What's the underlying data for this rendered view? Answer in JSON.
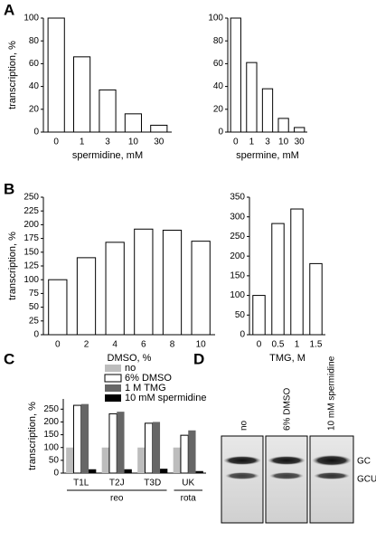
{
  "panel_labels": [
    "A",
    "B",
    "C",
    "D"
  ],
  "chart_data": [
    {
      "type": "bar",
      "ylabel": "transcription, %",
      "xlabel": "spermidine, mM",
      "categories": [
        "0",
        "1",
        "3",
        "10",
        "30"
      ],
      "values": [
        100,
        66,
        37,
        16,
        6
      ],
      "color": "#ffffff",
      "ylim": [
        0,
        100
      ],
      "yticks": [
        0,
        20,
        40,
        60,
        80,
        100
      ]
    },
    {
      "type": "bar",
      "xlabel": "spermine, mM",
      "categories": [
        "0",
        "1",
        "3",
        "10",
        "30"
      ],
      "values": [
        100,
        61,
        38,
        12,
        4
      ],
      "color": "#ffffff",
      "ylim": [
        0,
        100
      ],
      "yticks": [
        0,
        20,
        40,
        60,
        80,
        100
      ]
    },
    {
      "type": "bar",
      "ylabel": "transcription, %",
      "xlabel": "DMSO, %",
      "categories": [
        "0",
        "2",
        "4",
        "6",
        "8",
        "10"
      ],
      "values": [
        100,
        140,
        168,
        192,
        190,
        170
      ],
      "color": "#ffffff",
      "ylim": [
        0,
        250
      ],
      "yticks": [
        0,
        25,
        50,
        75,
        100,
        125,
        150,
        175,
        200,
        225,
        250
      ]
    },
    {
      "type": "bar",
      "xlabel": "TMG, M",
      "categories": [
        "0",
        "0.5",
        "1",
        "1.5"
      ],
      "values": [
        100,
        283,
        320,
        181
      ],
      "color": "#ffffff",
      "ylim": [
        0,
        350
      ],
      "yticks": [
        0,
        50,
        100,
        150,
        200,
        250,
        300,
        350
      ]
    },
    {
      "type": "grouped_bar",
      "ylabel": "transcription, %",
      "categories": [
        "T1L",
        "T2J",
        "T3D",
        "UK"
      ],
      "groups": [
        {
          "name": "reo",
          "members": [
            "T1L",
            "T2J",
            "T3D"
          ]
        },
        {
          "name": "rota",
          "members": [
            "UK"
          ]
        }
      ],
      "series": [
        {
          "name": "no",
          "color": "#bdbdbd",
          "values": [
            100,
            100,
            100,
            100
          ]
        },
        {
          "name": "6% DMSO",
          "color": "#ffffff",
          "values": [
            265,
            232,
            195,
            148
          ]
        },
        {
          "name": "1 M TMG",
          "color": "#666666",
          "values": [
            270,
            240,
            200,
            167
          ]
        },
        {
          "name": "10 mM spermidine",
          "color": "#000000",
          "values": [
            15,
            15,
            17,
            8
          ]
        }
      ],
      "ylim": [
        0,
        290
      ],
      "yticks": [
        0,
        50,
        100,
        150,
        200,
        250
      ]
    }
  ],
  "gel": {
    "lanes": [
      "no",
      "6% DMSO",
      "10 mM spermidine"
    ],
    "bands": [
      "GC",
      "GCU"
    ]
  }
}
